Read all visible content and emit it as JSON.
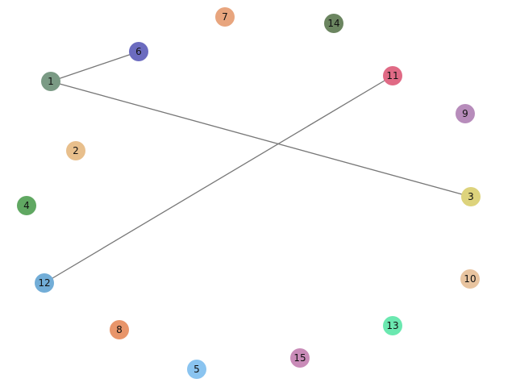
{
  "graph": {
    "nodes": [
      {
        "id": "1",
        "color": "#7a9a84"
      },
      {
        "id": "2",
        "color": "#e8bf8c"
      },
      {
        "id": "3",
        "color": "#ddd37c"
      },
      {
        "id": "4",
        "color": "#60a862"
      },
      {
        "id": "5",
        "color": "#8ac4f0"
      },
      {
        "id": "6",
        "color": "#6b6bbf"
      },
      {
        "id": "7",
        "color": "#e8a57e"
      },
      {
        "id": "8",
        "color": "#e8956a"
      },
      {
        "id": "9",
        "color": "#b78cbb"
      },
      {
        "id": "10",
        "color": "#e8c4a0"
      },
      {
        "id": "11",
        "color": "#e06a85"
      },
      {
        "id": "12",
        "color": "#72add7"
      },
      {
        "id": "13",
        "color": "#6be8b0"
      },
      {
        "id": "14",
        "color": "#6b8560"
      },
      {
        "id": "15",
        "color": "#c98bb8"
      }
    ],
    "edges": [
      {
        "source": "1",
        "target": "6"
      },
      {
        "source": "1",
        "target": "3"
      },
      {
        "source": "11",
        "target": "12"
      }
    ]
  }
}
